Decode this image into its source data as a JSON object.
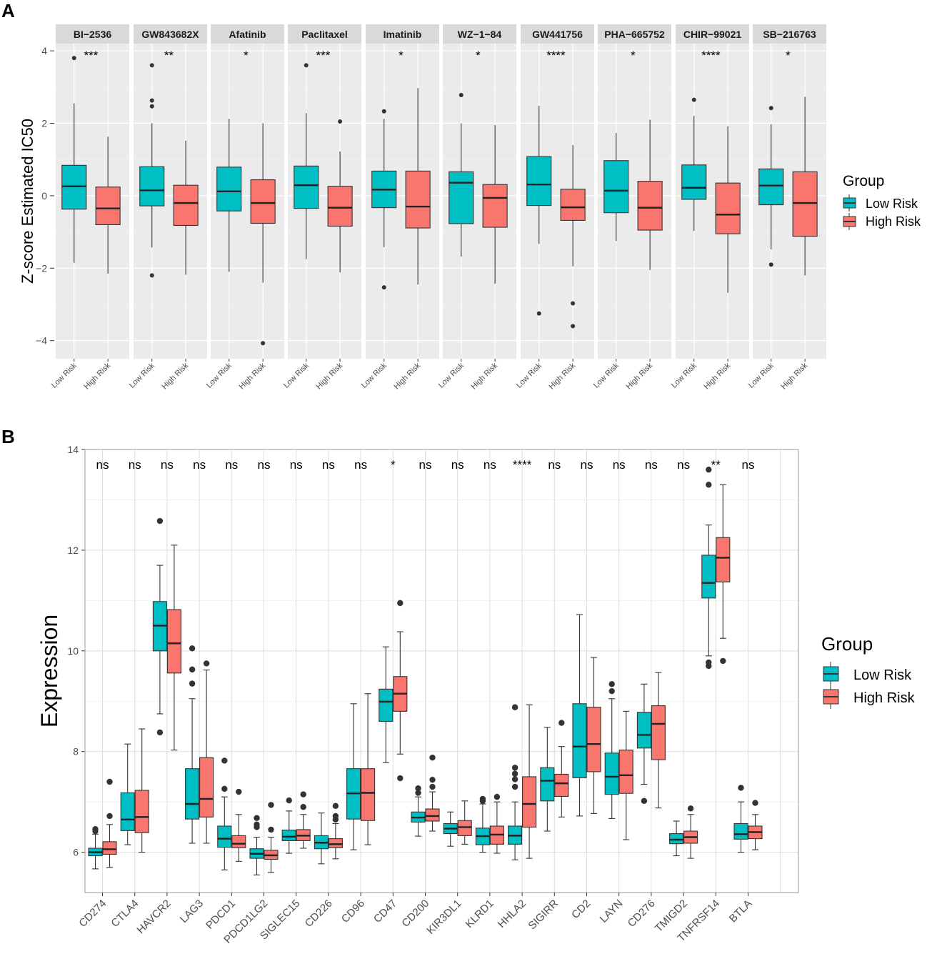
{
  "panels": {
    "a_label": "A",
    "b_label": "B"
  },
  "colors": {
    "low": "#00BFC4",
    "high": "#F8766D",
    "panel_bg": "#EBEBEB",
    "strip_bg": "#D9D9D9",
    "grid": "#FFFFFF",
    "outline": "#333333"
  },
  "legend": {
    "title": "Group",
    "low": "Low Risk",
    "high": "High Risk"
  },
  "chart_data": [
    {
      "type": "boxplot",
      "title": "",
      "ylabel": "Z-score Estimated IC50",
      "xlabel": "",
      "ylim": [
        -4.5,
        4.2
      ],
      "yticks": [
        -4,
        -2,
        0,
        2,
        4
      ],
      "x_tick_labels": [
        "Low Risk",
        "High Risk"
      ],
      "facets": [
        {
          "drug": "BI-2536",
          "sig": "***",
          "low": {
            "q1": -0.37,
            "median": 0.26,
            "q3": 0.84,
            "whisker_low": -1.85,
            "whisker_high": 2.55,
            "outliers": [
              3.8
            ]
          },
          "high": {
            "q1": -0.8,
            "median": -0.35,
            "q3": 0.24,
            "whisker_low": -2.15,
            "whisker_high": 1.63,
            "outliers": []
          }
        },
        {
          "drug": "GW843682X",
          "sig": "**",
          "low": {
            "q1": -0.28,
            "median": 0.15,
            "q3": 0.8,
            "whisker_low": -1.43,
            "whisker_high": 2.0,
            "outliers": [
              3.6,
              2.63,
              2.47,
              -2.2
            ]
          },
          "high": {
            "q1": -0.82,
            "median": -0.2,
            "q3": 0.29,
            "whisker_low": -2.18,
            "whisker_high": 1.52,
            "outliers": []
          }
        },
        {
          "drug": "Afatinib",
          "sig": "*",
          "low": {
            "q1": -0.42,
            "median": 0.12,
            "q3": 0.79,
            "whisker_low": -2.1,
            "whisker_high": 2.12,
            "outliers": []
          },
          "high": {
            "q1": -0.76,
            "median": -0.2,
            "q3": 0.44,
            "whisker_low": -2.4,
            "whisker_high": 2.0,
            "outliers": [
              -4.07
            ]
          }
        },
        {
          "drug": "Paclitaxel",
          "sig": "***",
          "low": {
            "q1": -0.35,
            "median": 0.29,
            "q3": 0.82,
            "whisker_low": -1.75,
            "whisker_high": 2.28,
            "outliers": [
              3.6
            ]
          },
          "high": {
            "q1": -0.84,
            "median": -0.33,
            "q3": 0.26,
            "whisker_low": -2.12,
            "whisker_high": 1.22,
            "outliers": [
              2.05
            ]
          }
        },
        {
          "drug": "Imatinib",
          "sig": "*",
          "low": {
            "q1": -0.33,
            "median": 0.17,
            "q3": 0.68,
            "whisker_low": -1.42,
            "whisker_high": 2.12,
            "outliers": [
              2.33,
              -2.53
            ]
          },
          "high": {
            "q1": -0.89,
            "median": -0.3,
            "q3": 0.68,
            "whisker_low": -2.45,
            "whisker_high": 2.97,
            "outliers": []
          }
        },
        {
          "drug": "WZ-1-84",
          "sig": "*",
          "low": {
            "q1": -0.77,
            "median": 0.36,
            "q3": 0.66,
            "whisker_low": -1.68,
            "whisker_high": 2.0,
            "outliers": [
              2.78
            ]
          },
          "high": {
            "q1": -0.87,
            "median": -0.06,
            "q3": 0.31,
            "whisker_low": -2.43,
            "whisker_high": 1.95,
            "outliers": []
          }
        },
        {
          "drug": "GW441756",
          "sig": "****",
          "low": {
            "q1": -0.27,
            "median": 0.31,
            "q3": 1.08,
            "whisker_low": -1.33,
            "whisker_high": 2.48,
            "outliers": [
              -3.25
            ]
          },
          "high": {
            "q1": -0.68,
            "median": -0.32,
            "q3": 0.18,
            "whisker_low": -1.95,
            "whisker_high": 1.4,
            "outliers": [
              -2.97,
              -3.6
            ]
          }
        },
        {
          "drug": "PHA-665752",
          "sig": "*",
          "low": {
            "q1": -0.47,
            "median": 0.14,
            "q3": 0.97,
            "whisker_low": -1.25,
            "whisker_high": 1.73,
            "outliers": []
          },
          "high": {
            "q1": -0.95,
            "median": -0.33,
            "q3": 0.4,
            "whisker_low": -2.05,
            "whisker_high": 2.1,
            "outliers": []
          }
        },
        {
          "drug": "CHIR-99021",
          "sig": "****",
          "low": {
            "q1": -0.1,
            "median": 0.22,
            "q3": 0.85,
            "whisker_low": -0.97,
            "whisker_high": 2.2,
            "outliers": [
              2.65
            ]
          },
          "high": {
            "q1": -1.05,
            "median": -0.52,
            "q3": 0.35,
            "whisker_low": -2.68,
            "whisker_high": 1.92,
            "outliers": []
          }
        },
        {
          "drug": "SB-216763",
          "sig": "*",
          "low": {
            "q1": -0.25,
            "median": 0.28,
            "q3": 0.74,
            "whisker_low": -1.48,
            "whisker_high": 1.97,
            "outliers": [
              2.42,
              -1.9
            ]
          },
          "high": {
            "q1": -1.12,
            "median": -0.2,
            "q3": 0.66,
            "whisker_low": -2.2,
            "whisker_high": 2.73,
            "outliers": []
          }
        }
      ]
    },
    {
      "type": "boxplot",
      "title": "",
      "ylabel": "Expression",
      "xlabel": "",
      "ylim": [
        5.2,
        14.0
      ],
      "yticks": [
        6,
        8,
        10,
        12,
        14
      ],
      "genes": [
        {
          "gene": "CD274",
          "sig": "ns",
          "low": {
            "q1": 5.93,
            "median": 6.0,
            "q3": 6.08,
            "whisker_low": 5.67,
            "whisker_high": 6.36,
            "outliers": [
              6.42,
              6.46
            ]
          },
          "high": {
            "q1": 5.96,
            "median": 6.06,
            "q3": 6.21,
            "whisker_low": 5.7,
            "whisker_high": 6.55,
            "outliers": [
              6.72,
              7.4
            ]
          }
        },
        {
          "gene": "CTLA4",
          "sig": "ns",
          "low": {
            "q1": 6.43,
            "median": 6.65,
            "q3": 7.18,
            "whisker_low": 6.15,
            "whisker_high": 8.15,
            "outliers": []
          },
          "high": {
            "q1": 6.39,
            "median": 6.7,
            "q3": 7.23,
            "whisker_low": 6.0,
            "whisker_high": 8.45,
            "outliers": []
          }
        },
        {
          "gene": "HAVCR2",
          "sig": "ns",
          "low": {
            "q1": 10.0,
            "median": 10.5,
            "q3": 10.98,
            "whisker_low": 8.75,
            "whisker_high": 11.7,
            "outliers": [
              12.58,
              8.38
            ]
          },
          "high": {
            "q1": 9.56,
            "median": 10.15,
            "q3": 10.82,
            "whisker_low": 8.03,
            "whisker_high": 12.1,
            "outliers": []
          }
        },
        {
          "gene": "LAG3",
          "sig": "ns",
          "low": {
            "q1": 6.66,
            "median": 6.96,
            "q3": 7.66,
            "whisker_low": 6.18,
            "whisker_high": 9.05,
            "outliers": [
              10.05,
              9.63,
              9.35
            ]
          },
          "high": {
            "q1": 6.7,
            "median": 7.06,
            "q3": 7.88,
            "whisker_low": 6.18,
            "whisker_high": 9.62,
            "outliers": [
              9.75
            ]
          }
        },
        {
          "gene": "PDCD1",
          "sig": "ns",
          "low": {
            "q1": 6.1,
            "median": 6.27,
            "q3": 6.52,
            "whisker_low": 5.65,
            "whisker_high": 7.1,
            "outliers": [
              7.82,
              7.26
            ]
          },
          "high": {
            "q1": 6.09,
            "median": 6.17,
            "q3": 6.33,
            "whisker_low": 5.82,
            "whisker_high": 6.75,
            "outliers": [
              7.2
            ]
          }
        },
        {
          "gene": "PDCD1LG2",
          "sig": "ns",
          "low": {
            "q1": 5.88,
            "median": 5.97,
            "q3": 6.07,
            "whisker_low": 5.55,
            "whisker_high": 6.3,
            "outliers": [
              6.68,
              6.55,
              6.5
            ]
          },
          "high": {
            "q1": 5.86,
            "median": 5.94,
            "q3": 6.04,
            "whisker_low": 5.6,
            "whisker_high": 6.3,
            "outliers": [
              6.45,
              6.94
            ]
          }
        },
        {
          "gene": "SIGLEC15",
          "sig": "ns",
          "low": {
            "q1": 6.23,
            "median": 6.31,
            "q3": 6.44,
            "whisker_low": 5.98,
            "whisker_high": 6.82,
            "outliers": [
              7.03
            ]
          },
          "high": {
            "q1": 6.23,
            "median": 6.33,
            "q3": 6.45,
            "whisker_low": 6.08,
            "whisker_high": 6.75,
            "outliers": [
              7.15,
              6.9
            ]
          }
        },
        {
          "gene": "CD226",
          "sig": "ns",
          "low": {
            "q1": 6.07,
            "median": 6.19,
            "q3": 6.33,
            "whisker_low": 5.77,
            "whisker_high": 6.78,
            "outliers": []
          },
          "high": {
            "q1": 6.09,
            "median": 6.16,
            "q3": 6.27,
            "whisker_low": 5.87,
            "whisker_high": 6.57,
            "outliers": [
              6.65,
              6.72,
              6.92
            ]
          }
        },
        {
          "gene": "CD96",
          "sig": "ns",
          "low": {
            "q1": 6.66,
            "median": 7.17,
            "q3": 7.66,
            "whisker_low": 6.05,
            "whisker_high": 8.95,
            "outliers": []
          },
          "high": {
            "q1": 6.63,
            "median": 7.18,
            "q3": 7.66,
            "whisker_low": 6.15,
            "whisker_high": 9.15,
            "outliers": []
          }
        },
        {
          "gene": "CD47",
          "sig": "*",
          "low": {
            "q1": 8.6,
            "median": 8.99,
            "q3": 9.24,
            "whisker_low": 7.78,
            "whisker_high": 10.08,
            "outliers": []
          },
          "high": {
            "q1": 8.8,
            "median": 9.15,
            "q3": 9.49,
            "whisker_low": 7.95,
            "whisker_high": 10.38,
            "outliers": [
              10.95,
              7.47
            ]
          }
        },
        {
          "gene": "CD200",
          "sig": "ns",
          "low": {
            "q1": 6.6,
            "median": 6.69,
            "q3": 6.8,
            "whisker_low": 6.32,
            "whisker_high": 7.1,
            "outliers": [
              7.18,
              7.27
            ]
          },
          "high": {
            "q1": 6.62,
            "median": 6.72,
            "q3": 6.86,
            "whisker_low": 6.42,
            "whisker_high": 7.2,
            "outliers": [
              7.3,
              7.44,
              7.88
            ]
          }
        },
        {
          "gene": "KIR3DL1",
          "sig": "ns",
          "low": {
            "q1": 6.37,
            "median": 6.47,
            "q3": 6.57,
            "whisker_low": 6.12,
            "whisker_high": 6.8,
            "outliers": []
          },
          "high": {
            "q1": 6.33,
            "median": 6.5,
            "q3": 6.63,
            "whisker_low": 6.16,
            "whisker_high": 7.02,
            "outliers": []
          }
        },
        {
          "gene": "KLRD1",
          "sig": "ns",
          "low": {
            "q1": 6.15,
            "median": 6.32,
            "q3": 6.48,
            "whisker_low": 6.0,
            "whisker_high": 6.96,
            "outliers": [
              7.02,
              7.06
            ]
          },
          "high": {
            "q1": 6.16,
            "median": 6.35,
            "q3": 6.52,
            "whisker_low": 5.98,
            "whisker_high": 7.0,
            "outliers": [
              7.1
            ]
          }
        },
        {
          "gene": "HHLA2",
          "sig": "****",
          "low": {
            "q1": 6.16,
            "median": 6.33,
            "q3": 6.52,
            "whisker_low": 5.85,
            "whisker_high": 7.0,
            "outliers": [
              8.88,
              7.68,
              7.56,
              7.45,
              7.3
            ]
          },
          "high": {
            "q1": 6.5,
            "median": 6.96,
            "q3": 7.5,
            "whisker_low": 5.88,
            "whisker_high": 8.93,
            "outliers": []
          }
        },
        {
          "gene": "SIGIRR",
          "sig": "ns",
          "low": {
            "q1": 7.02,
            "median": 7.42,
            "q3": 7.68,
            "whisker_low": 6.42,
            "whisker_high": 8.48,
            "outliers": []
          },
          "high": {
            "q1": 7.11,
            "median": 7.37,
            "q3": 7.55,
            "whisker_low": 6.7,
            "whisker_high": 8.1,
            "outliers": [
              8.57
            ]
          }
        },
        {
          "gene": "CD2",
          "sig": "ns",
          "low": {
            "q1": 7.48,
            "median": 8.1,
            "q3": 8.95,
            "whisker_low": 6.72,
            "whisker_high": 10.72,
            "outliers": []
          },
          "high": {
            "q1": 7.6,
            "median": 8.15,
            "q3": 8.88,
            "whisker_low": 6.77,
            "whisker_high": 9.87,
            "outliers": []
          }
        },
        {
          "gene": "LAYN",
          "sig": "ns",
          "low": {
            "q1": 7.15,
            "median": 7.5,
            "q3": 7.97,
            "whisker_low": 6.67,
            "whisker_high": 9.05,
            "outliers": [
              9.34,
              9.2
            ]
          },
          "high": {
            "q1": 7.17,
            "median": 7.53,
            "q3": 8.03,
            "whisker_low": 6.25,
            "whisker_high": 8.8,
            "outliers": []
          }
        },
        {
          "gene": "CD276",
          "sig": "ns",
          "low": {
            "q1": 8.07,
            "median": 8.33,
            "q3": 8.78,
            "whisker_low": 7.35,
            "whisker_high": 9.34,
            "outliers": [
              7.02
            ]
          },
          "high": {
            "q1": 7.84,
            "median": 8.55,
            "q3": 8.91,
            "whisker_low": 6.88,
            "whisker_high": 9.57,
            "outliers": []
          }
        },
        {
          "gene": "TMIGD2",
          "sig": "ns",
          "low": {
            "q1": 6.17,
            "median": 6.25,
            "q3": 6.37,
            "whisker_low": 5.93,
            "whisker_high": 6.62,
            "outliers": []
          },
          "high": {
            "q1": 6.18,
            "median": 6.3,
            "q3": 6.42,
            "whisker_low": 5.88,
            "whisker_high": 6.75,
            "outliers": [
              6.87
            ]
          }
        },
        {
          "gene": "TNFRSF14",
          "sig": "**",
          "low": {
            "q1": 11.05,
            "median": 11.35,
            "q3": 11.9,
            "whisker_low": 9.9,
            "whisker_high": 12.5,
            "outliers": [
              13.6,
              13.3,
              9.77,
              9.7
            ]
          },
          "high": {
            "q1": 11.37,
            "median": 11.85,
            "q3": 12.25,
            "whisker_low": 10.25,
            "whisker_high": 13.3,
            "outliers": [
              9.8
            ]
          }
        },
        {
          "gene": "BTLA",
          "sig": "ns",
          "low": {
            "q1": 6.26,
            "median": 6.36,
            "q3": 6.57,
            "whisker_low": 6.0,
            "whisker_high": 7.0,
            "outliers": [
              7.28
            ]
          },
          "high": {
            "q1": 6.27,
            "median": 6.4,
            "q3": 6.52,
            "whisker_low": 6.05,
            "whisker_high": 6.75,
            "outliers": [
              6.98
            ]
          }
        }
      ]
    }
  ]
}
